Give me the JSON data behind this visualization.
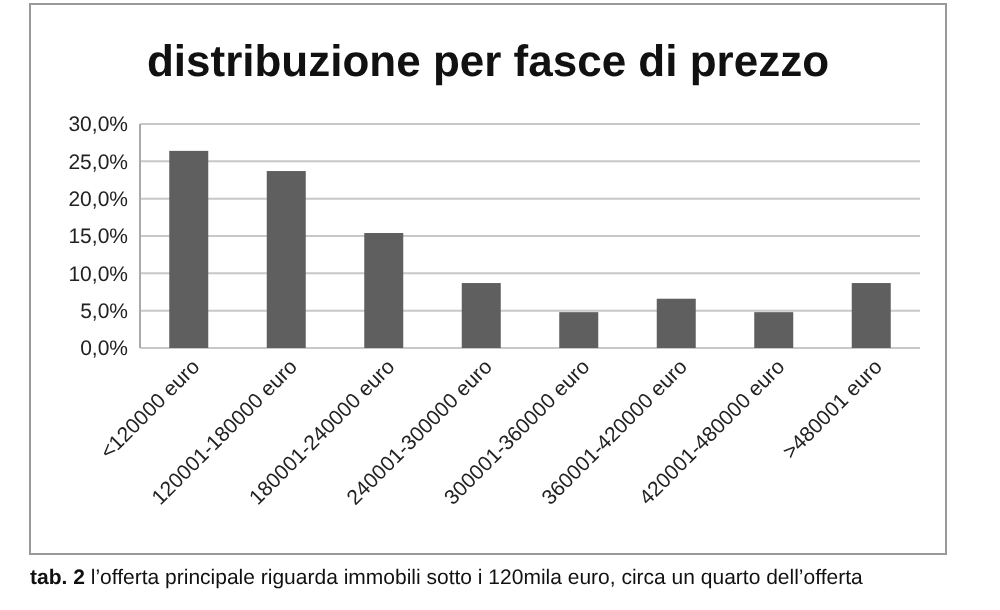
{
  "chart_data": {
    "type": "bar",
    "title": "distribuzione per fasce di prezzo",
    "categories": [
      "<120000 euro",
      "120001-180000 euro",
      "180001-240000 euro",
      "240001-300000 euro",
      "300001-360000 euro",
      "360001-420000 euro",
      "420001-480000 euro",
      ">480001 euro"
    ],
    "values": [
      26.4,
      23.7,
      15.4,
      8.7,
      4.8,
      6.6,
      4.8,
      8.7
    ],
    "color": "#5f5f5f",
    "ylim": [
      0,
      30
    ],
    "yticks": [
      {
        "value": 0,
        "label": "0,0%"
      },
      {
        "value": 5,
        "label": "5,0%"
      },
      {
        "value": 10,
        "label": "10,0%"
      },
      {
        "value": 15,
        "label": "15,0%"
      },
      {
        "value": 20,
        "label": "20,0%"
      },
      {
        "value": 25,
        "label": "25,0%"
      },
      {
        "value": 30,
        "label": "30,0%"
      }
    ],
    "grid": "y",
    "annotations": [
      "tab. 2 l’offerta principale riguarda immobili sotto i 120mila euro, circa un quarto dell’offerta"
    ]
  }
}
